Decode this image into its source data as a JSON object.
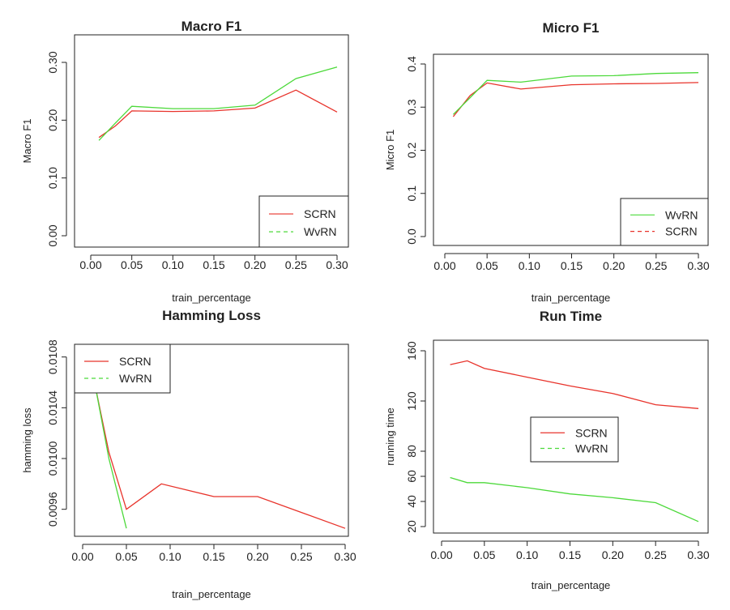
{
  "colors": {
    "scrn": "#e8332b",
    "wvrn": "#4cd93a",
    "axis": "#222222"
  },
  "chart_data": [
    {
      "type": "line",
      "title": "Macro F1",
      "xlabel": "train_percentage",
      "ylabel": "Macro F1",
      "xlim": [
        0.0,
        0.3
      ],
      "ylim": [
        0.0,
        0.3
      ],
      "xticks": [
        "0.00",
        "0.05",
        "0.10",
        "0.15",
        "0.20",
        "0.25",
        "0.30"
      ],
      "yticks": [
        "0.00",
        "0.10",
        "0.20",
        "0.30"
      ],
      "legend_position": "bottom-right",
      "legend_order": [
        "SCRN",
        "WvRN"
      ],
      "series": [
        {
          "name": "SCRN",
          "color": "#e8332b",
          "dash": "solid",
          "x": [
            0.01,
            0.03,
            0.05,
            0.1,
            0.15,
            0.2,
            0.25,
            0.3
          ],
          "y": [
            0.17,
            0.19,
            0.216,
            0.215,
            0.216,
            0.221,
            0.252,
            0.214
          ]
        },
        {
          "name": "WvRN",
          "color": "#4cd93a",
          "dash": "solid",
          "x": [
            0.01,
            0.03,
            0.05,
            0.1,
            0.15,
            0.2,
            0.25,
            0.3
          ],
          "y": [
            0.165,
            0.195,
            0.224,
            0.22,
            0.22,
            0.226,
            0.272,
            0.292
          ]
        }
      ]
    },
    {
      "type": "line",
      "title": "Micro F1",
      "xlabel": "train_percentage",
      "ylabel": "Micro F1",
      "xlim": [
        0.0,
        0.3
      ],
      "ylim": [
        0.0,
        0.4
      ],
      "xticks": [
        "0.00",
        "0.05",
        "0.10",
        "0.15",
        "0.20",
        "0.25",
        "0.30"
      ],
      "yticks": [
        "0.0",
        "0.1",
        "0.2",
        "0.3",
        "0.4"
      ],
      "legend_position": "bottom-right",
      "legend_order": [
        "WvRN",
        "SCRN"
      ],
      "series": [
        {
          "name": "SCRN",
          "color": "#e8332b",
          "dash": "solid",
          "x": [
            0.01,
            0.03,
            0.05,
            0.09,
            0.15,
            0.2,
            0.25,
            0.3
          ],
          "y": [
            0.278,
            0.327,
            0.356,
            0.342,
            0.352,
            0.354,
            0.355,
            0.357
          ]
        },
        {
          "name": "WvRN",
          "color": "#4cd93a",
          "dash": "solid",
          "x": [
            0.01,
            0.03,
            0.05,
            0.09,
            0.15,
            0.2,
            0.25,
            0.3
          ],
          "y": [
            0.283,
            0.322,
            0.362,
            0.358,
            0.372,
            0.373,
            0.378,
            0.38
          ]
        }
      ]
    },
    {
      "type": "line",
      "title": "Hamming Loss",
      "xlabel": "train_percentage",
      "ylabel": "hamming loss",
      "xlim": [
        0.0,
        0.3
      ],
      "ylim": [
        0.0094,
        0.0109
      ],
      "xticks": [
        "0.00",
        "0.05",
        "0.10",
        "0.15",
        "0.20",
        "0.25",
        "0.30"
      ],
      "yticks": [
        "0.0096",
        "0.0100",
        "0.0104",
        "0.0108"
      ],
      "legend_position": "top-left",
      "legend_order": [
        "SCRN",
        "WvRN"
      ],
      "series": [
        {
          "name": "SCRN",
          "color": "#e8332b",
          "dash": "solid",
          "x": [
            0.015,
            0.03,
            0.05,
            0.09,
            0.15,
            0.2,
            0.3
          ],
          "y": [
            0.01055,
            0.01005,
            0.0096,
            0.0098,
            0.0097,
            0.0097,
            0.00945
          ]
        },
        {
          "name": "WvRN",
          "color": "#4cd93a",
          "dash": "solid",
          "x": [
            0.015,
            0.03,
            0.05
          ],
          "y": [
            0.01055,
            0.01,
            0.00945
          ]
        }
      ]
    },
    {
      "type": "line",
      "title": "Run Time",
      "xlabel": "train_percentage",
      "ylabel": "running time",
      "xlim": [
        0.0,
        0.3
      ],
      "ylim": [
        20,
        160
      ],
      "xticks": [
        "0.00",
        "0.05",
        "0.10",
        "0.15",
        "0.20",
        "0.25",
        "0.30"
      ],
      "yticks": [
        "20",
        "40",
        "60",
        "80",
        "120",
        "160"
      ],
      "legend_position": "center",
      "legend_order": [
        "SCRN",
        "WvRN"
      ],
      "series": [
        {
          "name": "SCRN",
          "color": "#e8332b",
          "dash": "solid",
          "x": [
            0.01,
            0.03,
            0.05,
            0.1,
            0.15,
            0.2,
            0.25,
            0.3
          ],
          "y": [
            149,
            152,
            146,
            139,
            132,
            126,
            117,
            114
          ]
        },
        {
          "name": "WvRN",
          "color": "#4cd93a",
          "dash": "solid",
          "x": [
            0.01,
            0.03,
            0.05,
            0.1,
            0.15,
            0.2,
            0.25,
            0.3
          ],
          "y": [
            59,
            55,
            55,
            51,
            46,
            43,
            39,
            24
          ]
        }
      ]
    }
  ]
}
